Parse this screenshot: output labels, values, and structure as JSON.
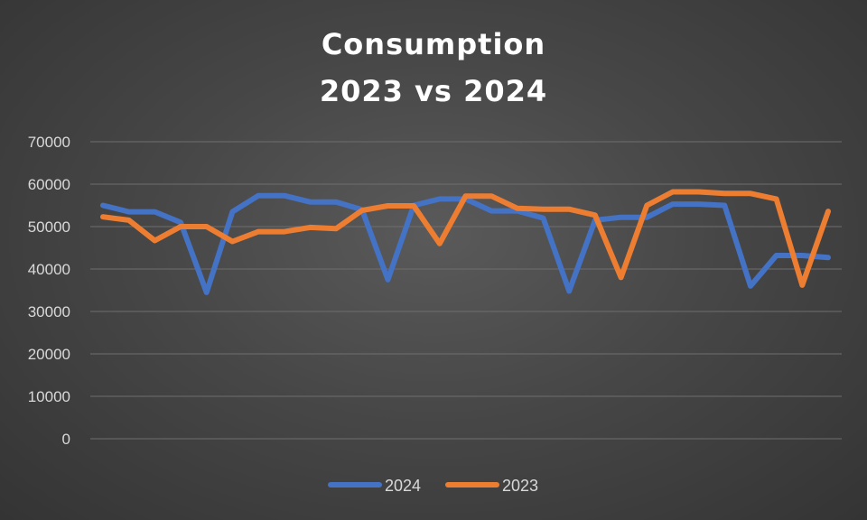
{
  "chart_data": {
    "type": "line",
    "title": [
      "Consumption",
      "2023 vs 2024"
    ],
    "xlabel": "",
    "ylabel": "",
    "ylim": [
      0,
      70000
    ],
    "yticks": [
      "0",
      "10000",
      "20000",
      "30000",
      "40000",
      "50000",
      "60000",
      "70000"
    ],
    "grid": true,
    "legend_position": "bottom",
    "series": [
      {
        "name": "2024",
        "color": "#4472C4",
        "values": [
          55000,
          53500,
          53500,
          51000,
          34500,
          53500,
          57300,
          57300,
          55800,
          55800,
          54000,
          37500,
          55000,
          56500,
          56500,
          53700,
          53700,
          52000,
          34800,
          51500,
          52200,
          52200,
          55300,
          55300,
          55000,
          36000,
          43200,
          43200,
          42700
        ]
      },
      {
        "name": "2023",
        "color": "#ED7D31",
        "values": [
          52300,
          51500,
          46700,
          50000,
          50000,
          46500,
          48800,
          48800,
          49800,
          49500,
          53800,
          54900,
          54900,
          46000,
          57200,
          57200,
          54300,
          54100,
          54100,
          52700,
          38000,
          55000,
          58200,
          58200,
          57800,
          57800,
          56500,
          36200,
          53600
        ]
      }
    ]
  }
}
